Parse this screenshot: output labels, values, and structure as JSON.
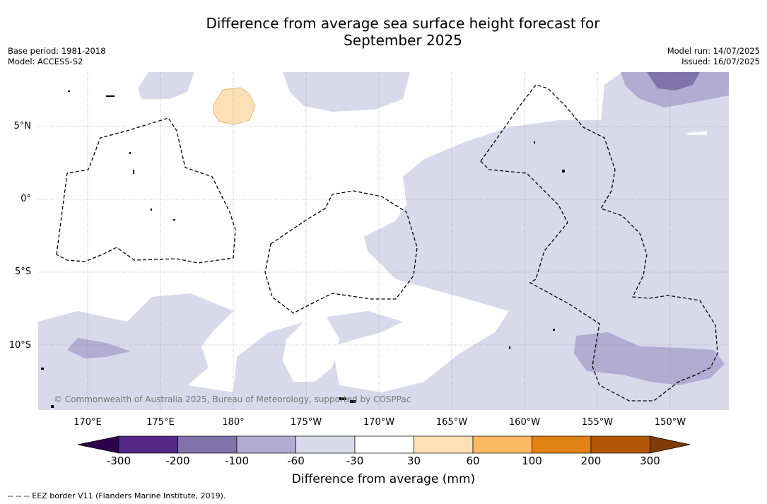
{
  "title_line1": "Difference from average sea surface height forecast for",
  "title_line2": "September 2025",
  "meta": {
    "base_period": "Base period: 1981-2018",
    "model": "Model: ACCESS-S2",
    "model_run": "Model run: 14/07/2025",
    "issued": "Issued: 16/07/2025"
  },
  "lat_labels": [
    "5°N",
    "0°",
    "5°S",
    "10°S"
  ],
  "lon_labels": [
    "170°E",
    "175°E",
    "180°",
    "175°W",
    "170°W",
    "165°W",
    "160°W",
    "155°W",
    "150°W"
  ],
  "copyright": "© Commonwealth of Australia 2025, Bureau of Meteorology, supported by COSPPac",
  "colorbar": {
    "ticks": [
      "-300",
      "-200",
      "-100",
      "-60",
      "-30",
      "30",
      "60",
      "100",
      "200",
      "300"
    ],
    "colors": [
      "#542788",
      "#8073ac",
      "#b2abd2",
      "#d8daeb",
      "#ffffff",
      "#fee0b6",
      "#fdb863",
      "#e08214",
      "#b35806"
    ],
    "under_color": "#2d004b",
    "over_color": "#7f3b08",
    "title": "Difference from average (mm)"
  },
  "footnote": "--  --  -- EEZ border V11 (Flanders Marine Institute, 2019)."
}
